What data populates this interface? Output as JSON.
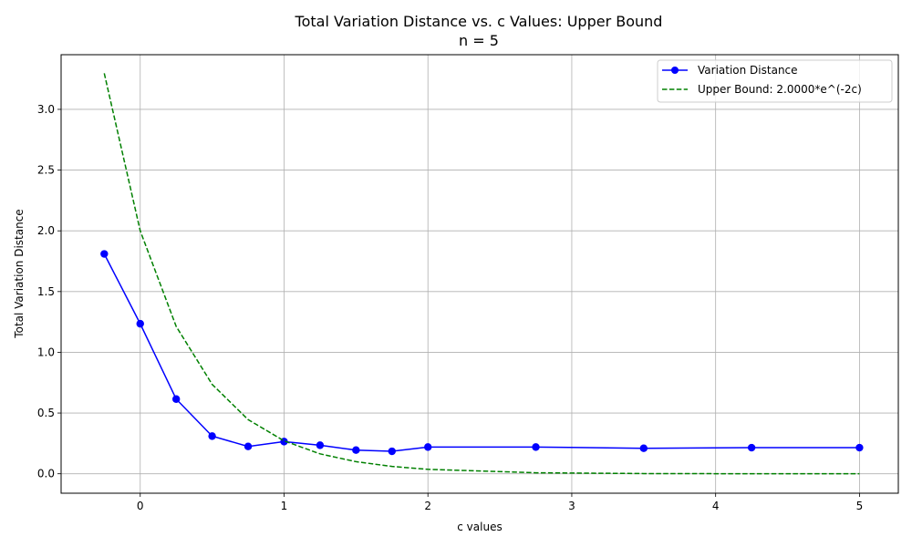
{
  "chart_data": {
    "type": "line",
    "title": "Total Variation Distance vs. c Values: Upper Bound",
    "subtitle": "n = 5",
    "xlabel": "c values",
    "ylabel": "Total Variation Distance",
    "xlim": [
      -0.55,
      5.27
    ],
    "ylim": [
      -0.16,
      3.45
    ],
    "xticks": [
      "0",
      "1",
      "2",
      "3",
      "4",
      "5"
    ],
    "yticks": [
      "0.0",
      "0.5",
      "1.0",
      "1.5",
      "2.0",
      "2.5",
      "3.0"
    ],
    "grid": true,
    "legend_position": "top-right",
    "series": [
      {
        "name": "Variation Distance",
        "color": "#0000ff",
        "style": "solid-with-markers",
        "x": [
          -0.25,
          0.0,
          0.25,
          0.5,
          0.75,
          1.0,
          1.25,
          1.5,
          1.75,
          2.0,
          2.75,
          3.5,
          4.25,
          5.0
        ],
        "y": [
          1.81,
          1.235,
          0.615,
          0.31,
          0.225,
          0.265,
          0.235,
          0.195,
          0.185,
          0.22,
          0.22,
          0.21,
          0.215,
          0.215
        ]
      },
      {
        "name": "Upper Bound: 2.0000*e^(-2c)",
        "color": "#008000",
        "style": "dashed",
        "x": [
          -0.25,
          0.0,
          0.25,
          0.5,
          0.75,
          1.0,
          1.25,
          1.5,
          1.75,
          2.0,
          2.75,
          3.5,
          4.25,
          5.0
        ],
        "y": [
          3.297,
          2.0,
          1.213,
          0.736,
          0.446,
          0.271,
          0.164,
          0.0996,
          0.0604,
          0.0366,
          0.0082,
          0.0018,
          0.0004,
          0.0001
        ]
      }
    ]
  }
}
